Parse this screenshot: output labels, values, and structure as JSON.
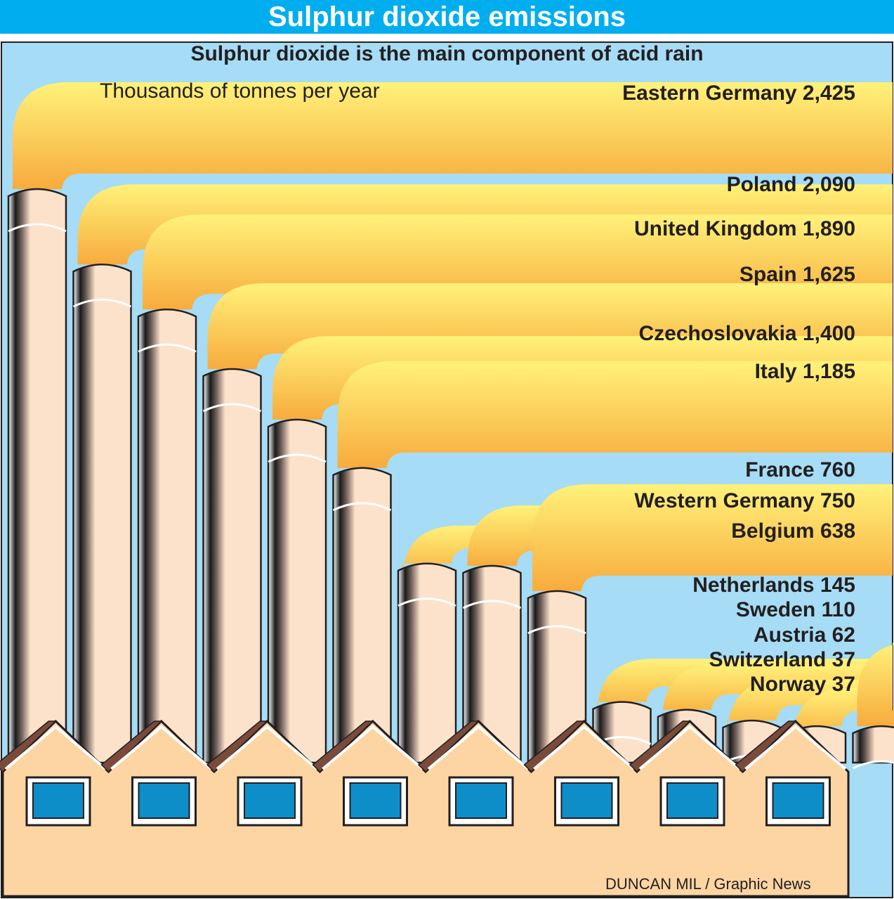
{
  "header": {
    "title": "Sulphur dioxide emissions"
  },
  "subtitle": "Sulphur dioxide is the main component of acid rain",
  "unit_label": "Thousands of tonnes per year",
  "credit": "DUNCAN MIL / Graphic News",
  "colors": {
    "header_bg": "#00aeef",
    "sky": "#a6dcf5",
    "smoke_light": "#fff27a",
    "smoke_dark": "#f7a93b",
    "chimney": "#fde2cb",
    "roof": "#7a4a3a",
    "factory_wall": "#fdd5a3",
    "window": "#0e8ec9"
  },
  "chart_data": {
    "type": "bar",
    "title": "Sulphur dioxide emissions",
    "subtitle": "Sulphur dioxide is the main component of acid rain",
    "ylabel": "Thousands of tonnes per year",
    "categories": [
      "Eastern Germany",
      "Poland",
      "United Kingdom",
      "Spain",
      "Czechoslovakia",
      "Italy",
      "France",
      "Western Germany",
      "Belgium",
      "Netherlands",
      "Sweden",
      "Austria",
      "Switzerland",
      "Norway"
    ],
    "values": [
      2425,
      2090,
      1890,
      1625,
      1400,
      1185,
      760,
      750,
      638,
      145,
      110,
      62,
      37,
      37
    ],
    "value_labels": [
      "2,425",
      "2,090",
      "1,890",
      "1,625",
      "1,400",
      "1,185",
      "760",
      "750",
      "638",
      "145",
      "110",
      "62",
      "37",
      "37"
    ]
  }
}
